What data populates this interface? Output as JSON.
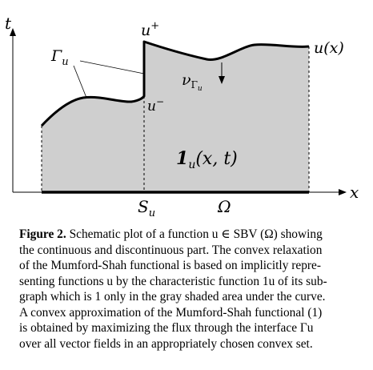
{
  "figure": {
    "axis_t": "t",
    "axis_x": "x",
    "label_u_plus": "u",
    "label_u_plus_sup": "+",
    "label_u_minus": "u",
    "label_u_minus_sup": "−",
    "label_u_of_x": "u(x)",
    "label_gamma": "Γ",
    "label_gamma_sub": "u",
    "label_nu": "ν",
    "label_nu_sub": "Γ",
    "label_nu_subsub": "u",
    "label_indicator": "1",
    "label_indicator_sub": "u",
    "label_indicator_args": "(x, t)",
    "label_S": "S",
    "label_S_sub": "u",
    "label_omega": "Ω",
    "colors": {
      "shaded_area": "#cfcfcf",
      "curve": "#000000"
    }
  },
  "caption": {
    "label": "Figure 2.",
    "lines": [
      " Schematic plot of a function u ∈ SBV (Ω) showing",
      "the continuous and discontinuous part. The convex relaxation",
      "of the Mumford-Shah functional is based on implicitly repre-",
      "senting functions u by the characteristic function 1u of its sub-",
      "graph which is 1 only in the gray shaded area under the curve.",
      "A convex approximation of the Mumford-Shah functional (1)",
      "is obtained by maximizing the flux through the interface Γu",
      "over all vector fields in an appropriately chosen convex set."
    ]
  }
}
